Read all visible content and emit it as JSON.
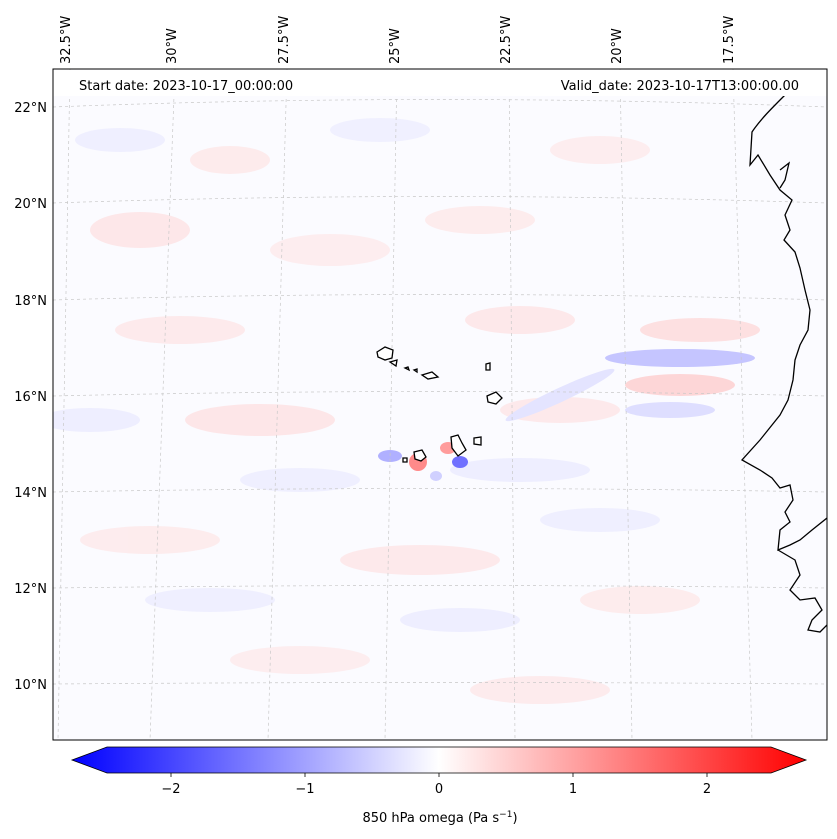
{
  "header": {
    "start_date": "Start date: 2023-10-17_00:00:00",
    "valid_date": "Valid_date: 2023-10-17T13:00:00.00"
  },
  "axes": {
    "lon_labels": [
      "32.5°W",
      "30°W",
      "27.5°W",
      "25°W",
      "22.5°W",
      "20°W",
      "17.5°W"
    ],
    "lat_labels": [
      "22°N",
      "20°N",
      "18°N",
      "16°N",
      "14°N",
      "12°N",
      "10°N"
    ]
  },
  "colorbar": {
    "ticks": [
      "−2",
      "−1",
      "0",
      "1",
      "2"
    ],
    "label_main": "850 hPa omega (Pa s",
    "label_sup": "−1",
    "label_close": ")",
    "vmin": -2.7,
    "vmax": 2.7,
    "colors": {
      "negative": "#0000ff",
      "zero": "#ffffff",
      "positive": "#ff0000"
    }
  },
  "map": {
    "gridlines": "on",
    "variable": "850 hPa omega",
    "colormap": "bwr"
  }
}
